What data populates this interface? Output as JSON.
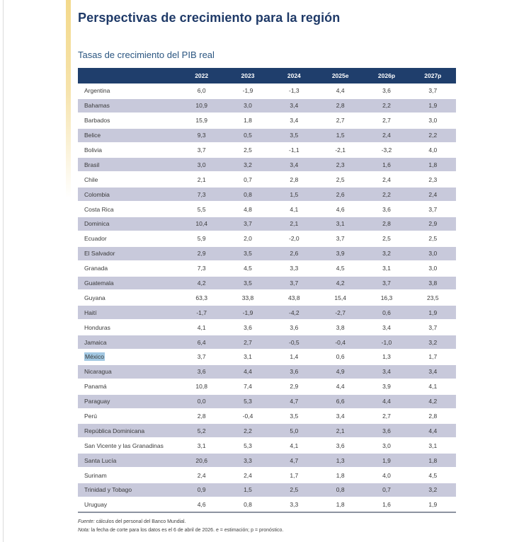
{
  "page": {
    "title": "Perspectivas de crecimiento para la región",
    "subtitle": "Tasas de crecimiento del PIB real"
  },
  "table": {
    "columns": [
      "2022",
      "2023",
      "2024",
      "2025e",
      "2026p",
      "2027p"
    ],
    "rows": [
      {
        "country": "Argentina",
        "values": [
          "6,0",
          "-1,9",
          "-1,3",
          "4,4",
          "3,6",
          "3,7"
        ]
      },
      {
        "country": "Bahamas",
        "values": [
          "10,9",
          "3,0",
          "3,4",
          "2,8",
          "2,2",
          "1,9"
        ]
      },
      {
        "country": "Barbados",
        "values": [
          "15,9",
          "1,8",
          "3,4",
          "2,7",
          "2,7",
          "3,0"
        ]
      },
      {
        "country": "Belice",
        "values": [
          "9,3",
          "0,5",
          "3,5",
          "1,5",
          "2,4",
          "2,2"
        ]
      },
      {
        "country": "Bolivia",
        "values": [
          "3,7",
          "2,5",
          "-1,1",
          "-2,1",
          "-3,2",
          "4,0"
        ]
      },
      {
        "country": "Brasil",
        "values": [
          "3,0",
          "3,2",
          "3,4",
          "2,3",
          "1,6",
          "1,8"
        ]
      },
      {
        "country": "Chile",
        "values": [
          "2,1",
          "0,7",
          "2,8",
          "2,5",
          "2,4",
          "2,3"
        ]
      },
      {
        "country": "Colombia",
        "values": [
          "7,3",
          "0,8",
          "1,5",
          "2,6",
          "2,2",
          "2,4"
        ]
      },
      {
        "country": "Costa Rica",
        "values": [
          "5,5",
          "4,8",
          "4,1",
          "4,6",
          "3,6",
          "3,7"
        ]
      },
      {
        "country": "Dominica",
        "values": [
          "10,4",
          "3,7",
          "2,1",
          "3,1",
          "2,8",
          "2,9"
        ]
      },
      {
        "country": "Ecuador",
        "values": [
          "5,9",
          "2,0",
          "-2,0",
          "3,7",
          "2,5",
          "2,5"
        ]
      },
      {
        "country": "El Salvador",
        "values": [
          "2,9",
          "3,5",
          "2,6",
          "3,9",
          "3,2",
          "3,0"
        ]
      },
      {
        "country": "Granada",
        "values": [
          "7,3",
          "4,5",
          "3,3",
          "4,5",
          "3,1",
          "3,0"
        ]
      },
      {
        "country": "Guatemala",
        "values": [
          "4,2",
          "3,5",
          "3,7",
          "4,2",
          "3,7",
          "3,8"
        ]
      },
      {
        "country": "Guyana",
        "values": [
          "63,3",
          "33,8",
          "43,8",
          "15,4",
          "16,3",
          "23,5"
        ]
      },
      {
        "country": "Haití",
        "values": [
          "-1,7",
          "-1,9",
          "-4,2",
          "-2,7",
          "0,6",
          "1,9"
        ]
      },
      {
        "country": "Honduras",
        "values": [
          "4,1",
          "3,6",
          "3,6",
          "3,8",
          "3,4",
          "3,7"
        ]
      },
      {
        "country": "Jamaica",
        "values": [
          "6,4",
          "2,7",
          "-0,5",
          "-0,4",
          "-1,0",
          "3,2"
        ]
      },
      {
        "country": "México",
        "highlighted": true,
        "values": [
          "3,7",
          "3,1",
          "1,4",
          "0,6",
          "1,3",
          "1,7"
        ]
      },
      {
        "country": "Nicaragua",
        "values": [
          "3,6",
          "4,4",
          "3,6",
          "4,9",
          "3,4",
          "3,4"
        ]
      },
      {
        "country": "Panamá",
        "values": [
          "10,8",
          "7,4",
          "2,9",
          "4,4",
          "3,9",
          "4,1"
        ]
      },
      {
        "country": "Paraguay",
        "values": [
          "0,0",
          "5,3",
          "4,7",
          "6,6",
          "4,4",
          "4,2"
        ]
      },
      {
        "country": "Perú",
        "values": [
          "2,8",
          "-0,4",
          "3,5",
          "3,4",
          "2,7",
          "2,8"
        ]
      },
      {
        "country": "República Dominicana",
        "values": [
          "5,2",
          "2,2",
          "5,0",
          "2,1",
          "3,6",
          "4,4"
        ]
      },
      {
        "country": "San Vicente y las Granadinas",
        "values": [
          "3,1",
          "5,3",
          "4,1",
          "3,6",
          "3,0",
          "3,1"
        ]
      },
      {
        "country": "Santa Lucía",
        "values": [
          "20,6",
          "3,3",
          "4,7",
          "1,3",
          "1,9",
          "1,8"
        ]
      },
      {
        "country": "Surinam",
        "values": [
          "2,4",
          "2,4",
          "1,7",
          "1,8",
          "4,0",
          "4,5"
        ]
      },
      {
        "country": "Trinidad y Tobago",
        "values": [
          "0,9",
          "1,5",
          "2,5",
          "0,8",
          "0,7",
          "3,2"
        ]
      },
      {
        "country": "Uruguay",
        "values": [
          "4,6",
          "0,8",
          "3,3",
          "1,8",
          "1,6",
          "1,9"
        ]
      }
    ]
  },
  "footnotes": {
    "source_label": "Fuente:",
    "source_text": " cálculos del personal del Banco Mundial.",
    "note_label": "Nota:",
    "note_text": " la fecha de corte para los datos es el 6 de abril de 2026. e = estimación; p = pronóstico."
  },
  "colors": {
    "title_navy": "#1f3a68",
    "header_bg": "#1f3e6c",
    "row_shade": "#c8c9db",
    "selection_highlight": "#a2c8e2",
    "accent_stripe_yellow": "#f3d98b",
    "table_bottom_rule": "#8d93a0"
  }
}
